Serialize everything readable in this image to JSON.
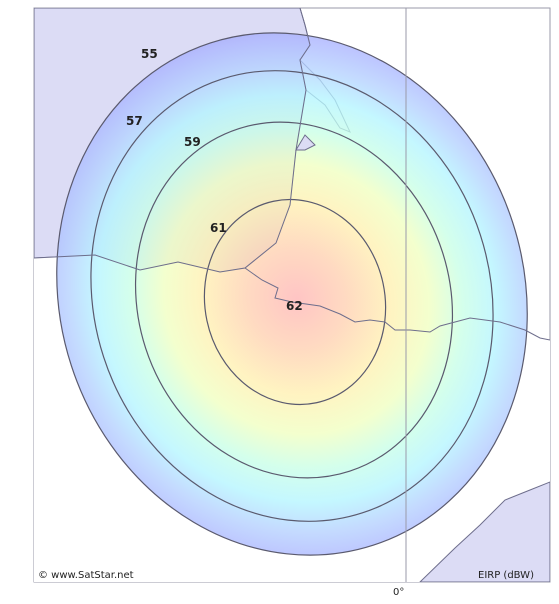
{
  "map": {
    "copyright": "© www.SatStar.net",
    "units_label": "EIRP (dBW)",
    "meridian_label": "0°",
    "contours": [
      {
        "value": "55",
        "label": "55"
      },
      {
        "value": "57",
        "label": "57"
      },
      {
        "value": "59",
        "label": "59"
      },
      {
        "value": "61",
        "label": "61"
      },
      {
        "value": "62",
        "label": "62"
      }
    ],
    "colors": {
      "ocean": "#ffffff",
      "land": "#dcdcf5",
      "border": "#6e6e8c",
      "contour_line": "#5a5a6e",
      "gradient": [
        "#ffb4b4",
        "#ffd0b0",
        "#fff0b0",
        "#f0ffc0",
        "#c8ffe6",
        "#b4f5ff",
        "#b4d2ff",
        "#aab4ff",
        "#9a9af0"
      ]
    }
  }
}
